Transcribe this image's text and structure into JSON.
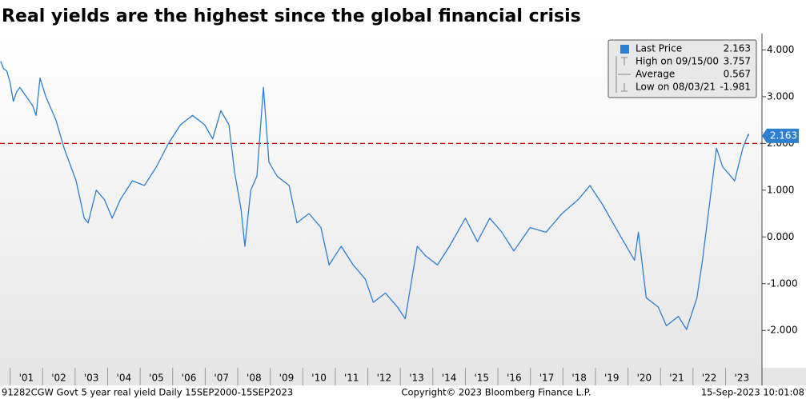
{
  "chart_data": {
    "type": "line",
    "title": "Real yields are the highest since the global financial crisis",
    "series": [
      {
        "color": "#2e7fd0",
        "x": [
          2000.71,
          2000.8,
          2000.9,
          2001.0,
          2001.1,
          2001.2,
          2001.3,
          2001.5,
          2001.7,
          2001.8,
          2001.92,
          2002.1,
          2002.41,
          2002.66,
          2003.03,
          2003.28,
          2003.4,
          2003.65,
          2003.9,
          2004.14,
          2004.39,
          2004.76,
          2005.13,
          2005.5,
          2005.87,
          2006.24,
          2006.61,
          2006.98,
          2007.23,
          2007.48,
          2007.73,
          2007.9,
          2008.1,
          2008.22,
          2008.4,
          2008.59,
          2008.79,
          2008.96,
          2009.21,
          2009.58,
          2009.82,
          2010.19,
          2010.56,
          2010.81,
          2011.18,
          2011.55,
          2011.92,
          2012.17,
          2012.54,
          2012.91,
          2013.15,
          2013.33,
          2013.52,
          2013.77,
          2014.14,
          2014.51,
          2015.0,
          2015.37,
          2015.75,
          2016.12,
          2016.49,
          2016.99,
          2017.48,
          2017.97,
          2018.47,
          2018.83,
          2019.21,
          2019.7,
          2020.2,
          2020.32,
          2020.56,
          2020.93,
          2021.18,
          2021.55,
          2021.8,
          2022.12,
          2022.29,
          2022.47,
          2022.72,
          2022.91,
          2023.28,
          2023.53,
          2023.7,
          2023.71
        ],
        "values": [
          3.757,
          3.6,
          3.55,
          3.3,
          2.9,
          3.1,
          3.2,
          3.0,
          2.8,
          2.6,
          3.4,
          3.0,
          2.5,
          1.9,
          1.2,
          0.4,
          0.3,
          1.0,
          0.8,
          0.4,
          0.8,
          1.2,
          1.1,
          1.5,
          2.0,
          2.4,
          2.6,
          2.4,
          2.1,
          2.7,
          2.4,
          1.4,
          0.6,
          -0.2,
          1.0,
          1.3,
          3.2,
          1.6,
          1.3,
          1.1,
          0.3,
          0.5,
          0.2,
          -0.6,
          -0.2,
          -0.6,
          -0.9,
          -1.4,
          -1.2,
          -1.5,
          -1.75,
          -1.0,
          -0.2,
          -0.4,
          -0.6,
          -0.2,
          0.4,
          -0.1,
          0.4,
          0.1,
          -0.3,
          0.2,
          0.1,
          0.5,
          0.8,
          1.1,
          0.7,
          0.1,
          -0.5,
          0.1,
          -1.3,
          -1.5,
          -1.9,
          -1.7,
          -1.981,
          -1.3,
          -0.5,
          0.5,
          1.9,
          1.5,
          1.2,
          1.9,
          2.2,
          2.163
        ]
      }
    ],
    "xlim": [
      2000.69,
      2024.12
    ],
    "xticks": [
      {
        "value": 2001.5,
        "label": "'01"
      },
      {
        "value": 2002.5,
        "label": "'02"
      },
      {
        "value": 2003.5,
        "label": "'03"
      },
      {
        "value": 2004.5,
        "label": "'04"
      },
      {
        "value": 2005.5,
        "label": "'05"
      },
      {
        "value": 2006.5,
        "label": "'06"
      },
      {
        "value": 2007.5,
        "label": "'07"
      },
      {
        "value": 2008.5,
        "label": "'08"
      },
      {
        "value": 2009.5,
        "label": "'09"
      },
      {
        "value": 2010.5,
        "label": "'10"
      },
      {
        "value": 2011.5,
        "label": "'11"
      },
      {
        "value": 2012.5,
        "label": "'12"
      },
      {
        "value": 2013.5,
        "label": "'13"
      },
      {
        "value": 2014.5,
        "label": "'14"
      },
      {
        "value": 2015.5,
        "label": "'15"
      },
      {
        "value": 2016.5,
        "label": "'16"
      },
      {
        "value": 2017.5,
        "label": "'17"
      },
      {
        "value": 2018.5,
        "label": "'18"
      },
      {
        "value": 2019.5,
        "label": "'19"
      },
      {
        "value": 2020.5,
        "label": "'20"
      },
      {
        "value": 2021.5,
        "label": "'21"
      },
      {
        "value": 2022.5,
        "label": "'22"
      },
      {
        "value": 2023.5,
        "label": "'23"
      }
    ],
    "ylim": [
      -2.8,
      4.35
    ],
    "yticks": [
      {
        "value": 4,
        "label": "4.000"
      },
      {
        "value": 3,
        "label": "3.000"
      },
      {
        "value": 2,
        "label": "2.000"
      },
      {
        "value": 1,
        "label": "1.000"
      },
      {
        "value": 0,
        "label": "0.000"
      },
      {
        "value": -1,
        "label": "-1.000"
      },
      {
        "value": -2,
        "label": "-2.000"
      }
    ],
    "reference_line": {
      "value": 2,
      "color": "#c00000"
    },
    "legend_stats": [
      {
        "label": "Last Price",
        "value": 2.163
      },
      {
        "label": "High on 09/15/00",
        "value": 3.757
      },
      {
        "label": "Average",
        "value": 0.567
      },
      {
        "label": "Low on 08/03/21",
        "value": -1.981
      }
    ],
    "footer": {
      "left": "91282CGW Govt 5 year real yield  Daily 15SEP2000-15SEP2023",
      "center": "Copyright© 2023 Bloomberg Finance L.P.",
      "right": "15-Sep-2023 10:01:08"
    }
  }
}
